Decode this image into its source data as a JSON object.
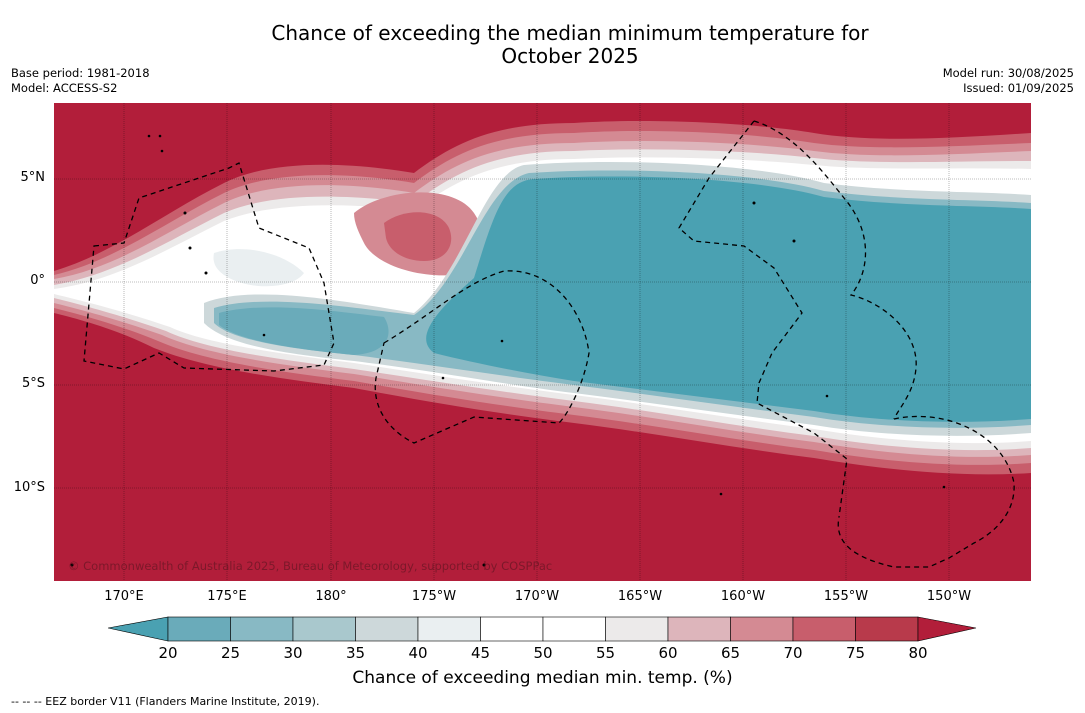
{
  "title_line1": "Chance of exceeding the median minimum temperature for",
  "title_line2": "October 2025",
  "base_period": "Base period: 1981-2018",
  "model": "Model: ACCESS-S2",
  "model_run": "Model run: 30/08/2025",
  "issued": "Issued: 01/09/2025",
  "lat_labels": [
    "5°N",
    "0°",
    "5°S",
    "10°S"
  ],
  "lon_labels": [
    "170°E",
    "175°E",
    "180°",
    "175°W",
    "170°W",
    "165°W",
    "160°W",
    "155°W",
    "150°W"
  ],
  "copyright": "© Commonwealth of Australia 2025, Bureau of Meteorology, supported by COSPPac",
  "colorbar": {
    "ticks": [
      "20",
      "25",
      "30",
      "35",
      "40",
      "45",
      "50",
      "55",
      "60",
      "65",
      "70",
      "75",
      "80"
    ],
    "title": "Chance of exceeding median min. temp. (%)",
    "colors": [
      "#4aa1b2",
      "#6aabba",
      "#88b9c4",
      "#a9c8cd",
      "#cdd8da",
      "#eaeff1",
      "#ffffff",
      "#ffffff",
      "#eceaea",
      "#ddb5bb",
      "#d48a93",
      "#c85e6c",
      "#b83a4b",
      "#b21e3a"
    ]
  },
  "footnote": "--  --  -- EEZ border V11 (Flanders Marine Institute, 2019)."
}
